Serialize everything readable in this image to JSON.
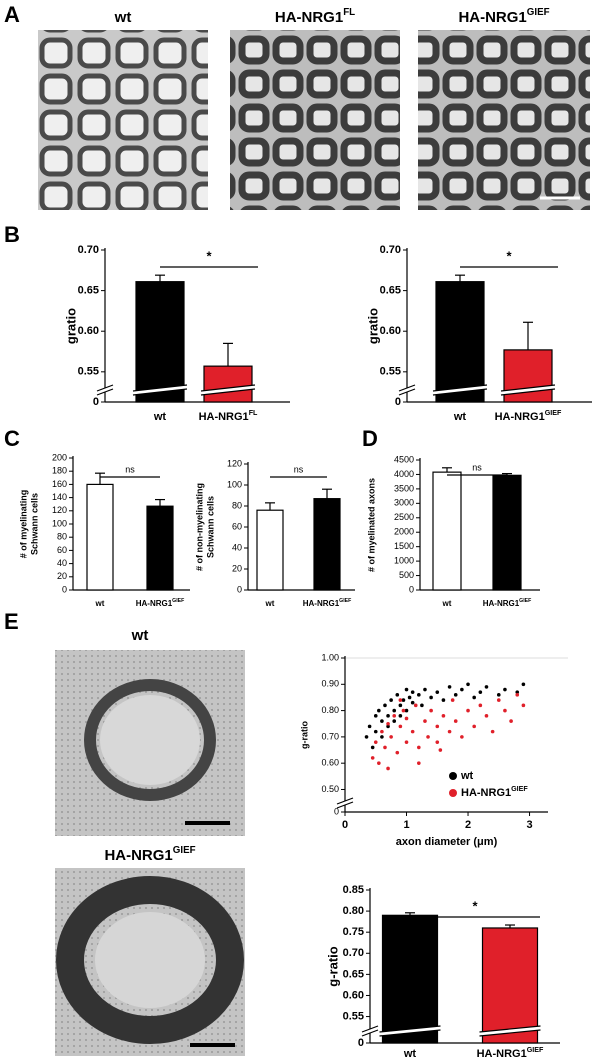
{
  "panel_labels": [
    "A",
    "B",
    "C",
    "D",
    "E"
  ],
  "image_labels": [
    {
      "text": "wt"
    },
    {
      "text": "HA-NRG1",
      "sup": "FL"
    },
    {
      "text": "HA-NRG1",
      "sup": "GIEF"
    },
    {
      "text": "wt"
    },
    {
      "text": "HA-NRG1",
      "sup": "GIEF"
    }
  ],
  "chart_data": [
    {
      "type": "bar",
      "ylabel": "gratio",
      "categories": [
        {
          "text": "wt"
        },
        {
          "text": "HA-NRG1",
          "sup": "FL"
        }
      ],
      "values": [
        0.661,
        0.557
      ],
      "errors": [
        0.008,
        0.028
      ],
      "colors": [
        "#000000",
        "#e0202a"
      ],
      "ylim": [
        0,
        0.7
      ],
      "axis_break": [
        0.005,
        0.535
      ],
      "yticks": [
        0,
        0.55,
        {
          "value": 0.6,
          "label": "0.60"
        },
        0.65,
        {
          "value": 0.7,
          "label": "0.70"
        }
      ],
      "significance": {
        "label": "*",
        "between": [
          0,
          1
        ]
      }
    },
    {
      "type": "bar",
      "ylabel": "gratio",
      "categories": [
        {
          "text": "wt"
        },
        {
          "text": "HA-NRG1",
          "sup": "GIEF"
        }
      ],
      "values": [
        0.661,
        0.577
      ],
      "errors": [
        0.008,
        0.034
      ],
      "colors": [
        "#000000",
        "#e0202a"
      ],
      "ylim": [
        0,
        0.7
      ],
      "axis_break": [
        0.005,
        0.535
      ],
      "yticks": [
        0,
        0.55,
        {
          "value": 0.6,
          "label": "0.60"
        },
        0.65,
        {
          "value": 0.7,
          "label": "0.70"
        }
      ],
      "significance": {
        "label": "*",
        "between": [
          0,
          1
        ]
      }
    },
    {
      "type": "bar",
      "ylabel": [
        "# of myelinating",
        "Schwann cells"
      ],
      "categories": [
        {
          "text": "wt"
        },
        {
          "text": "HA-NRG1",
          "sup": "GIEF"
        }
      ],
      "values": [
        160,
        127
      ],
      "errors": [
        17,
        10
      ],
      "colors": [
        "#ffffff",
        "#000000"
      ],
      "ylim": [
        0,
        200
      ],
      "yticks": [
        0,
        20,
        40,
        60,
        80,
        100,
        120,
        140,
        160,
        180,
        200
      ],
      "significance": {
        "label": "ns",
        "between": [
          0,
          1
        ]
      }
    },
    {
      "type": "bar",
      "ylabel": [
        "# of non-myelinating",
        "Schwann cells"
      ],
      "categories": [
        {
          "text": "wt"
        },
        {
          "text": "HA-NRG1",
          "sup": "GIEF"
        }
      ],
      "values": [
        76,
        87
      ],
      "errors": [
        7,
        9
      ],
      "colors": [
        "#ffffff",
        "#000000"
      ],
      "ylim": [
        0,
        120
      ],
      "yticks": [
        0,
        20,
        40,
        60,
        80,
        100,
        120
      ],
      "significance": {
        "label": "ns",
        "between": [
          0,
          1
        ]
      }
    },
    {
      "type": "bar",
      "ylabel": [
        "# of myelinated axons"
      ],
      "categories": [
        {
          "text": "wt"
        },
        {
          "text": "HA-NRG1",
          "sup": "GIEF"
        }
      ],
      "values": [
        4080,
        3970
      ],
      "errors": [
        150,
        60
      ],
      "colors": [
        "#ffffff",
        "#000000"
      ],
      "ylim": [
        0,
        4500
      ],
      "yticks": [
        0,
        500,
        1000,
        1500,
        2000,
        2500,
        3000,
        3500,
        4000,
        4500
      ],
      "significance": {
        "label": "ns",
        "between": [
          0,
          1
        ]
      }
    },
    {
      "type": "scatter",
      "ylabel": "g-ratio",
      "xlabel": "axon diameter (μm)",
      "xlim": [
        0,
        3.3
      ],
      "xticks": [
        0,
        1,
        2,
        3
      ],
      "ylim": [
        0,
        1.0
      ],
      "axis_break": [
        0.005,
        0.46
      ],
      "yticks": [
        0,
        {
          "value": 0.5,
          "label": "0.50"
        },
        {
          "value": 0.6,
          "label": "0.60"
        },
        {
          "value": 0.7,
          "label": "0.70"
        },
        {
          "value": 0.8,
          "label": "0.80"
        },
        {
          "value": 0.9,
          "label": "0.90"
        },
        {
          "value": 1.0,
          "label": "1.00"
        }
      ],
      "legend": "lower right",
      "series": [
        {
          "name": "wt",
          "color": "#000000",
          "x": [
            0.35,
            0.4,
            0.45,
            0.5,
            0.5,
            0.55,
            0.6,
            0.6,
            0.65,
            0.7,
            0.7,
            0.75,
            0.8,
            0.8,
            0.85,
            0.9,
            0.9,
            0.95,
            1.0,
            1.0,
            1.05,
            1.1,
            1.1,
            1.2,
            1.25,
            1.3,
            1.4,
            1.5,
            1.6,
            1.7,
            1.8,
            1.9,
            2.0,
            2.1,
            2.2,
            2.3,
            2.5,
            2.6,
            2.8,
            2.9
          ],
          "values": [
            0.7,
            0.74,
            0.66,
            0.78,
            0.72,
            0.8,
            0.76,
            0.7,
            0.82,
            0.78,
            0.74,
            0.84,
            0.8,
            0.76,
            0.86,
            0.82,
            0.78,
            0.84,
            0.88,
            0.8,
            0.85,
            0.83,
            0.87,
            0.86,
            0.82,
            0.88,
            0.85,
            0.87,
            0.84,
            0.89,
            0.86,
            0.88,
            0.9,
            0.85,
            0.87,
            0.89,
            0.86,
            0.88,
            0.87,
            0.9
          ]
        },
        {
          "name": "HA-NRG1",
          "name_sup": "GIEF",
          "color": "#e0202a",
          "x": [
            0.45,
            0.5,
            0.55,
            0.6,
            0.65,
            0.7,
            0.7,
            0.75,
            0.8,
            0.85,
            0.9,
            0.95,
            1.0,
            1.0,
            1.1,
            1.15,
            1.2,
            1.3,
            1.35,
            1.4,
            1.5,
            1.55,
            1.6,
            1.7,
            1.75,
            1.8,
            1.9,
            2.0,
            2.1,
            2.2,
            2.3,
            2.4,
            2.5,
            2.6,
            2.7,
            2.8,
            2.9,
            1.2,
            1.5,
            0.9
          ],
          "values": [
            0.62,
            0.68,
            0.6,
            0.72,
            0.66,
            0.75,
            0.58,
            0.7,
            0.78,
            0.64,
            0.74,
            0.8,
            0.68,
            0.77,
            0.72,
            0.82,
            0.66,
            0.76,
            0.7,
            0.8,
            0.74,
            0.65,
            0.78,
            0.72,
            0.84,
            0.76,
            0.7,
            0.8,
            0.74,
            0.82,
            0.78,
            0.72,
            0.84,
            0.8,
            0.76,
            0.86,
            0.82,
            0.6,
            0.68,
            0.84
          ]
        }
      ]
    },
    {
      "type": "bar",
      "ylabel": "g-ratio",
      "categories": [
        {
          "text": "wt"
        },
        {
          "text": "HA-NRG1",
          "sup": "GIEF"
        }
      ],
      "values": [
        0.79,
        0.76
      ],
      "errors": [
        0.006,
        0.007
      ],
      "colors": [
        "#000000",
        "#e0202a"
      ],
      "ylim": [
        0,
        0.85
      ],
      "axis_break": [
        0.005,
        0.53
      ],
      "yticks": [
        0,
        0.55,
        {
          "value": 0.6,
          "label": "0.60"
        },
        0.65,
        {
          "value": 0.7,
          "label": "0.70"
        },
        0.75,
        {
          "value": 0.8,
          "label": "0.80"
        },
        0.85
      ],
      "significance": {
        "label": "*",
        "between": [
          0,
          1
        ]
      }
    }
  ]
}
